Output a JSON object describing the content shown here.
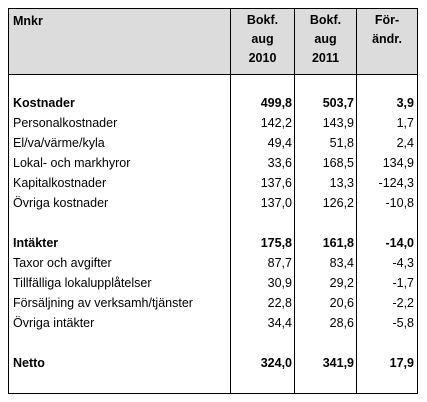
{
  "header": {
    "label": "Mnkr",
    "col1": [
      "Bokf.",
      "aug",
      "2010"
    ],
    "col2": [
      "Bokf.",
      "aug",
      "2011"
    ],
    "col3": [
      "För-",
      "ändr."
    ]
  },
  "rows": [
    {
      "label": "Kostnader",
      "v1": "499,8",
      "v2": "503,7",
      "v3": "3,9",
      "bold": true
    },
    {
      "label": "Personalkostnader",
      "v1": "142,2",
      "v2": "143,9",
      "v3": "1,7"
    },
    {
      "label": "El/va/värme/kyla",
      "v1": "49,4",
      "v2": "51,8",
      "v3": "2,4"
    },
    {
      "label": "Lokal- och markhyror",
      "v1": "33,6",
      "v2": "168,5",
      "v3": "134,9"
    },
    {
      "label": "Kapitalkostnader",
      "v1": "137,6",
      "v2": "13,3",
      "v3": "-124,3"
    },
    {
      "label": "Övriga kostnader",
      "v1": "137,0",
      "v2": "126,2",
      "v3": "-10,8"
    },
    {
      "label": "Intäkter",
      "v1": "175,8",
      "v2": "161,8",
      "v3": "-14,0",
      "bold": true
    },
    {
      "label": "Taxor och avgifter",
      "v1": "87,7",
      "v2": "83,4",
      "v3": "-4,3"
    },
    {
      "label": "Tillfälliga lokalupplåtelser",
      "v1": "30,9",
      "v2": "29,2",
      "v3": "-1,7"
    },
    {
      "label": "Försäljning av verksamh/tjänster",
      "v1": "22,8",
      "v2": "20,6",
      "v3": "-2,2"
    },
    {
      "label": "Övriga intäkter",
      "v1": "34,4",
      "v2": "28,6",
      "v3": "-5,8"
    },
    {
      "label": "Netto",
      "v1": "324,0",
      "v2": "341,9",
      "v3": "17,9",
      "bold": true
    }
  ]
}
